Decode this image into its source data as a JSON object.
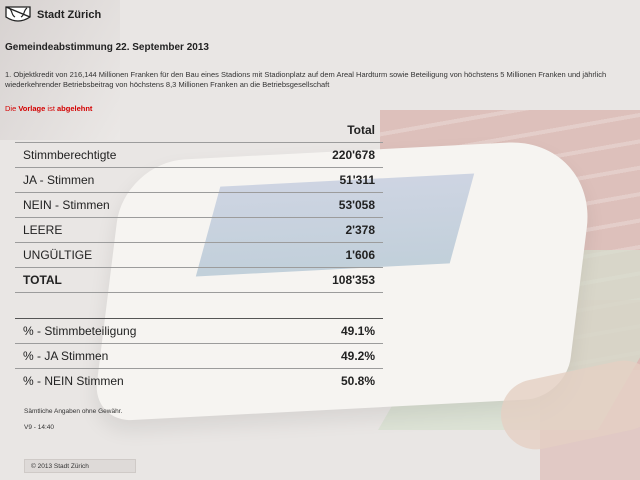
{
  "header": {
    "org_name": "Stadt Zürich",
    "logo_icon": "zurich-coat-of-arms-icon"
  },
  "vote": {
    "title": "Gemeindeabstimmung 22. September 2013",
    "question": "1. Objektkredit von 216,144 Millionen Franken für den Bau eines Stadions mit Stadionplatz auf dem Areal Hardturm sowie Beteiligung von höchstens 5 Millionen Franken und jährlich wiederkehrender Betriebsbeitrag von höchstens 8,3 Millionen Franken an die Betriebsgesellschaft",
    "verdict": {
      "part1": "Die",
      "part2": "Vorlage",
      "part3": "ist",
      "part4": "abgelehnt",
      "color": "#d40000"
    }
  },
  "results": {
    "column_header": "Total",
    "rows": [
      {
        "label": "Stimmberechtigte",
        "value": "220'678"
      },
      {
        "label": "JA - Stimmen",
        "value": "51'311"
      },
      {
        "label": "NEIN - Stimmen",
        "value": "53'058"
      },
      {
        "label": "LEERE",
        "value": "2'378"
      },
      {
        "label": "UNGÜLTIGE",
        "value": "1'606"
      },
      {
        "label": "TOTAL",
        "value": "108'353"
      }
    ],
    "percent_rows": [
      {
        "label": "% - Stimmbeteiligung",
        "value": "49.1%"
      },
      {
        "label": "% - JA Stimmen",
        "value": "49.2%"
      },
      {
        "label": "% - NEIN Stimmen",
        "value": "50.8%"
      }
    ]
  },
  "footer": {
    "disclaimer": "Sämtliche Angaben ohne Gewähr.",
    "version": "V9 - 14:40",
    "copyright": "© 2013 Stadt Zürich"
  }
}
